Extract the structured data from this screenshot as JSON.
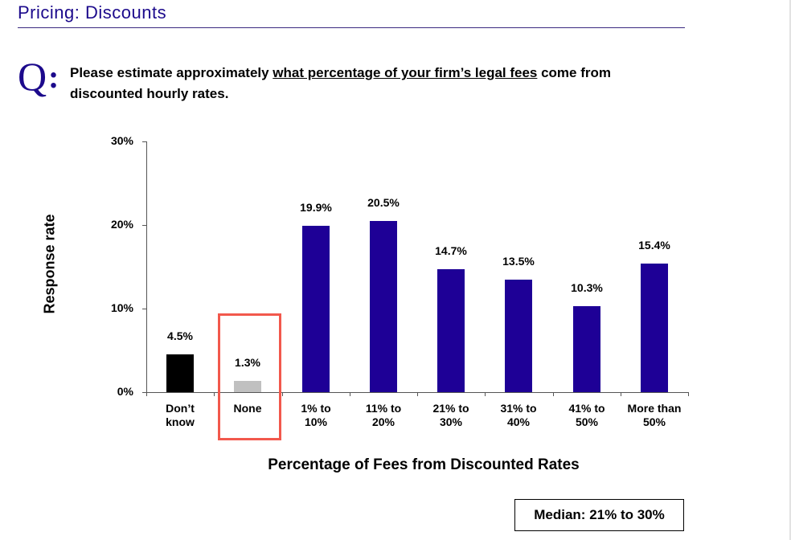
{
  "header": {
    "title": "Pricing: Discounts"
  },
  "question": {
    "mark": "Q",
    "colon": ":",
    "text_before": "Please estimate approximately ",
    "text_underlined": "what percentage of your firm’s legal fees",
    "text_after": " come from discounted hourly rates."
  },
  "colors": {
    "primary_bar": "#1e0096",
    "dont_know_bar": "#000000",
    "none_bar": "#c0c0c0",
    "highlight_box": "#f2584c",
    "title": "#1c0a8c"
  },
  "chart_data": {
    "type": "bar",
    "title": "",
    "xlabel": "Percentage of Fees from Discounted Rates",
    "ylabel": "Response rate",
    "ylim": [
      0,
      30
    ],
    "yticks": [
      "0%",
      "10%",
      "20%",
      "30%"
    ],
    "categories": [
      "Don’t know",
      "None",
      "1% to 10%",
      "11% to 20%",
      "21% to 30%",
      "31% to 40%",
      "41% to 50%",
      "More than 50%"
    ],
    "category_lines": [
      [
        "Don’t",
        "know"
      ],
      [
        "None",
        ""
      ],
      [
        "1% to",
        "10%"
      ],
      [
        "11% to",
        "20%"
      ],
      [
        "21% to",
        "30%"
      ],
      [
        "31% to",
        "40%"
      ],
      [
        "41% to",
        "50%"
      ],
      [
        "More than",
        "50%"
      ]
    ],
    "values": [
      4.5,
      1.3,
      19.9,
      20.5,
      14.7,
      13.5,
      10.3,
      15.4
    ],
    "value_labels": [
      "4.5%",
      "1.3%",
      "19.9%",
      "20.5%",
      "14.7%",
      "13.5%",
      "10.3%",
      "15.4%"
    ],
    "bar_colors": [
      "#000000",
      "#c0c0c0",
      "#1e0096",
      "#1e0096",
      "#1e0096",
      "#1e0096",
      "#1e0096",
      "#1e0096"
    ],
    "highlighted_category": "None",
    "grid": false,
    "legend": null
  },
  "median_box": {
    "text": "Median: 21% to 30%"
  }
}
